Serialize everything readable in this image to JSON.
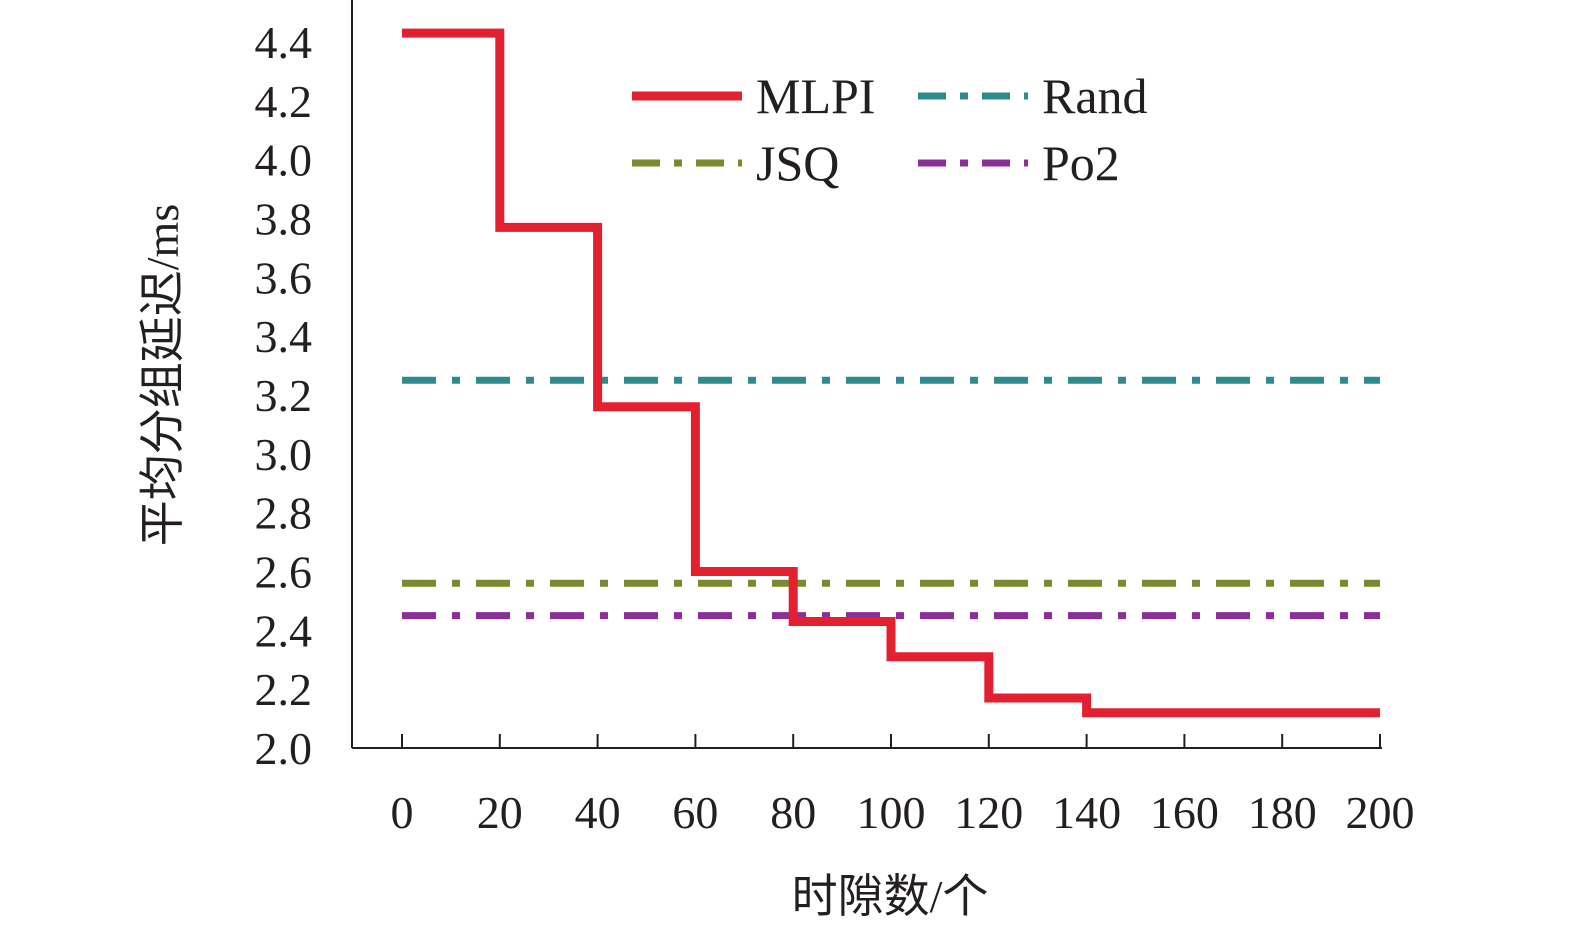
{
  "chart_data": {
    "type": "line",
    "title": "",
    "xlabel": "时隙数/个",
    "ylabel": "平均分组延迟/ms",
    "xlim": [
      0,
      200
    ],
    "ylim": [
      2.0,
      4.5
    ],
    "x_ticks": [
      0,
      20,
      40,
      60,
      80,
      100,
      120,
      140,
      160,
      180,
      200
    ],
    "x_tick_labels": [
      "0",
      "20",
      "40",
      "60",
      "80",
      "100",
      "120",
      "140",
      "160",
      "180",
      "200"
    ],
    "y_ticks": [
      2.0,
      2.2,
      2.4,
      2.6,
      2.8,
      3.0,
      3.2,
      3.4,
      3.6,
      3.8,
      4.0,
      4.2,
      4.4
    ],
    "y_tick_labels": [
      "2.0",
      "2.2",
      "2.4",
      "2.6",
      "2.8",
      "3.0",
      "3.2",
      "3.4",
      "3.6",
      "3.8",
      "4.0",
      "4.2",
      "4.4"
    ],
    "grid": false,
    "legend": {
      "position": "top-center",
      "columns": 2
    },
    "series": [
      {
        "name": "MLPI",
        "style": "solid",
        "step": true,
        "color": "#e3202f",
        "x": [
          0,
          20,
          20,
          40,
          40,
          60,
          60,
          80,
          80,
          100,
          100,
          120,
          120,
          140,
          140,
          200
        ],
        "y": [
          4.43,
          4.43,
          3.77,
          3.77,
          3.16,
          3.16,
          2.6,
          2.6,
          2.43,
          2.43,
          2.31,
          2.31,
          2.17,
          2.17,
          2.12,
          2.12
        ]
      },
      {
        "name": "Rand",
        "style": "dash-dot",
        "color": "#2e8b8b",
        "x": [
          0,
          200
        ],
        "y": [
          3.25,
          3.25
        ]
      },
      {
        "name": "JSQ",
        "style": "dash-dot",
        "color": "#7b8a2e",
        "x": [
          0,
          200
        ],
        "y": [
          2.56,
          2.56
        ]
      },
      {
        "name": "Po2",
        "style": "dash-dot",
        "color": "#8b2f98",
        "x": [
          0,
          200
        ],
        "y": [
          2.45,
          2.45
        ]
      }
    ]
  }
}
